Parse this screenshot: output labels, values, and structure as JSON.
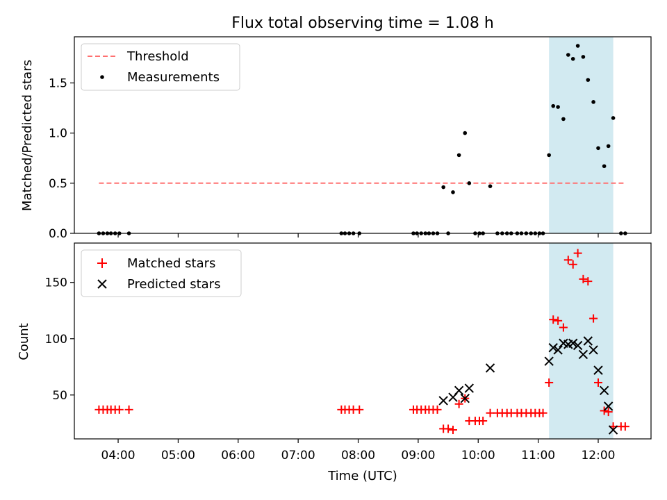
{
  "title": "Flux total observing time = 1.08 h",
  "colors": {
    "threshold": "#ff7070",
    "measurement": "#000000",
    "matched": "#ff0000",
    "predicted": "#000000",
    "highlight_fill": "#add8e6",
    "axis": "#000000"
  },
  "chart_data": [
    {
      "type": "scatter",
      "panel": "top",
      "title": "Flux total observing time = 1.08 h",
      "xlabel": "",
      "ylabel": "Matched/Predicted stars",
      "x_unit": "hours UTC",
      "xlim": [
        3.27,
        12.88
      ],
      "ylim": [
        0,
        1.96
      ],
      "yticks": [
        0.0,
        0.5,
        1.0,
        1.5
      ],
      "ytick_labels": [
        "0.0",
        "0.5",
        "1.0",
        "1.5"
      ],
      "highlight_span": [
        11.18,
        12.25
      ],
      "legend": {
        "position": "top-left",
        "entries": [
          "Threshold",
          "Measurements"
        ]
      },
      "series": [
        {
          "name": "Threshold",
          "kind": "dashed-line",
          "x": [
            3.68,
            12.45
          ],
          "y": [
            0.5,
            0.5
          ]
        },
        {
          "name": "Measurements",
          "kind": "dots",
          "x": [
            3.68,
            3.75,
            3.82,
            3.88,
            3.95,
            4.02,
            4.18,
            7.72,
            7.78,
            7.85,
            7.92,
            8.02,
            8.92,
            8.98,
            9.05,
            9.12,
            9.18,
            9.25,
            9.32,
            9.42,
            9.5,
            9.58,
            9.68,
            9.78,
            9.85,
            9.95,
            10.02,
            10.08,
            10.2,
            10.32,
            10.4,
            10.48,
            10.55,
            10.65,
            10.72,
            10.8,
            10.88,
            10.95,
            11.02,
            11.08,
            11.18,
            11.25,
            11.33,
            11.42,
            11.5,
            11.58,
            11.66,
            11.75,
            11.83,
            11.92,
            12.0,
            12.1,
            12.17,
            12.25,
            12.38,
            12.45
          ],
          "y": [
            0,
            0,
            0,
            0,
            0,
            0,
            0,
            0,
            0,
            0,
            0,
            0,
            0,
            0,
            0,
            0,
            0,
            0,
            0,
            0.46,
            0,
            0.41,
            0.78,
            1.0,
            0.5,
            0,
            0,
            0,
            0.47,
            0,
            0,
            0,
            0,
            0,
            0,
            0,
            0,
            0,
            0,
            0,
            0.78,
            1.27,
            1.26,
            1.14,
            1.78,
            1.74,
            1.87,
            1.76,
            1.53,
            1.31,
            0.85,
            0.67,
            0.87,
            1.15,
            0,
            0
          ]
        }
      ]
    },
    {
      "type": "scatter",
      "panel": "bottom",
      "title": "",
      "xlabel": "Time (UTC)",
      "ylabel": "Count",
      "x_unit": "hours UTC",
      "xlim": [
        3.27,
        12.88
      ],
      "ylim": [
        11,
        185
      ],
      "yticks": [
        50,
        100,
        150
      ],
      "ytick_labels": [
        "50",
        "100",
        "150"
      ],
      "xticks": [
        4,
        5,
        6,
        7,
        8,
        9,
        10,
        11,
        12
      ],
      "xtick_labels": [
        "04:00",
        "05:00",
        "06:00",
        "07:00",
        "08:00",
        "09:00",
        "10:00",
        "11:00",
        "12:00"
      ],
      "highlight_span": [
        11.18,
        12.25
      ],
      "legend": {
        "position": "top-left",
        "entries": [
          "Matched stars",
          "Predicted stars"
        ]
      },
      "series": [
        {
          "name": "Matched stars",
          "marker": "plus",
          "x": [
            3.68,
            3.75,
            3.82,
            3.88,
            3.95,
            4.02,
            4.18,
            7.72,
            7.78,
            7.85,
            7.92,
            8.02,
            8.92,
            8.98,
            9.05,
            9.12,
            9.18,
            9.25,
            9.32,
            9.42,
            9.5,
            9.58,
            9.68,
            9.78,
            9.85,
            9.95,
            10.02,
            10.08,
            10.2,
            10.32,
            10.4,
            10.48,
            10.55,
            10.65,
            10.72,
            10.8,
            10.88,
            10.95,
            11.02,
            11.08,
            11.18,
            11.25,
            11.33,
            11.42,
            11.5,
            11.58,
            11.66,
            11.75,
            11.83,
            11.92,
            12.0,
            12.1,
            12.17,
            12.25,
            12.38,
            12.45
          ],
          "y": [
            37,
            37,
            37,
            37,
            37,
            37,
            37,
            37,
            37,
            37,
            37,
            37,
            37,
            37,
            37,
            37,
            37,
            37,
            37,
            20,
            20,
            19,
            42,
            47,
            27,
            27,
            27,
            27,
            34,
            34,
            34,
            34,
            34,
            34,
            34,
            34,
            34,
            34,
            34,
            34,
            61,
            117,
            116,
            110,
            170,
            166,
            176,
            153,
            151,
            118,
            61,
            36,
            35,
            22,
            22,
            22
          ]
        },
        {
          "name": "Predicted stars",
          "marker": "x",
          "x": [
            9.42,
            9.58,
            9.68,
            9.78,
            9.85,
            10.2,
            11.18,
            11.25,
            11.33,
            11.42,
            11.5,
            11.58,
            11.66,
            11.75,
            11.83,
            11.92,
            12.0,
            12.1,
            12.17,
            12.25
          ],
          "y": [
            45,
            48,
            54,
            47,
            56,
            74,
            80,
            92,
            90,
            96,
            95,
            96,
            94,
            86,
            98,
            90,
            72,
            54,
            40,
            19
          ]
        }
      ]
    }
  ]
}
